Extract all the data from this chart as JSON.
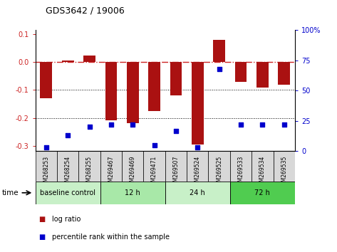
{
  "title": "GDS3642 / 19006",
  "samples": [
    "GSM268253",
    "GSM268254",
    "GSM268255",
    "GSM269467",
    "GSM269469",
    "GSM269471",
    "GSM269507",
    "GSM269524",
    "GSM269525",
    "GSM269533",
    "GSM269534",
    "GSM269535"
  ],
  "log_ratio": [
    -0.13,
    0.005,
    0.025,
    -0.21,
    -0.22,
    -0.175,
    -0.12,
    -0.295,
    0.08,
    -0.07,
    -0.09,
    -0.08
  ],
  "percentile_rank": [
    3,
    13,
    20,
    22,
    22,
    5,
    17,
    3,
    68,
    22,
    22,
    22
  ],
  "groups": [
    {
      "label": "baseline control",
      "start": 0,
      "end": 3,
      "color": "#c8f0c8"
    },
    {
      "label": "12 h",
      "start": 3,
      "end": 6,
      "color": "#a8e8a8"
    },
    {
      "label": "24 h",
      "start": 6,
      "end": 9,
      "color": "#c8f0c8"
    },
    {
      "label": "72 h",
      "start": 9,
      "end": 12,
      "color": "#50cc50"
    }
  ],
  "bar_color": "#aa1111",
  "dot_color": "#0000cc",
  "ylim_left": [
    -0.32,
    0.115
  ],
  "ylim_right": [
    0,
    100
  ],
  "yticks_left": [
    -0.3,
    -0.2,
    -0.1,
    0.0,
    0.1
  ],
  "yticks_right": [
    0,
    25,
    50,
    75,
    100
  ],
  "hline_zero_color": "#cc2222",
  "hline_dotted_vals": [
    -0.1,
    -0.2
  ],
  "background_color": "#ffffff",
  "tick_label_color_left": "#cc2222",
  "tick_label_color_right": "#0000cc",
  "time_label": "time",
  "bar_width": 0.55,
  "sample_box_color": "#d8d8d8"
}
